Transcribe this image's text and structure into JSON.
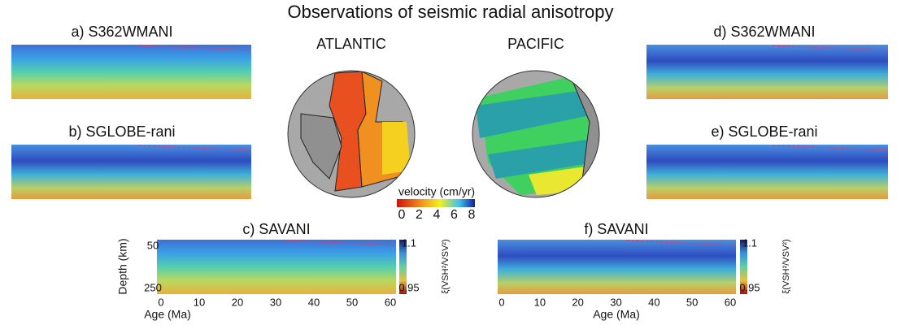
{
  "title": "Observations of seismic radial anisotropy",
  "panels": [
    {
      "label": "a) S362WMANI"
    },
    {
      "label": "b) SGLOBE-rani"
    },
    {
      "label": "c) SAVANI"
    },
    {
      "label": "d) S362WMANI"
    },
    {
      "label": "e) SGLOBE-rani"
    },
    {
      "label": "f) SAVANI"
    }
  ],
  "globes": [
    {
      "label": "ATLANTIC"
    },
    {
      "label": "PACIFIC"
    }
  ],
  "velocity_colorbar": {
    "label": "velocity (cm/yr)",
    "ticks": [
      "0",
      "2",
      "4",
      "6",
      "8"
    ]
  },
  "age_axis": {
    "label": "Age (Ma)",
    "ticks": [
      "0",
      "10",
      "20",
      "30",
      "40",
      "50",
      "60"
    ]
  },
  "depth_axis": {
    "label": "Depth (km)",
    "ticks": [
      "50",
      "250"
    ]
  },
  "anisotropy_colorbar": {
    "label": "ξ(VSH²/VSV²)",
    "ticks": [
      "1.1",
      "0.95"
    ]
  }
}
